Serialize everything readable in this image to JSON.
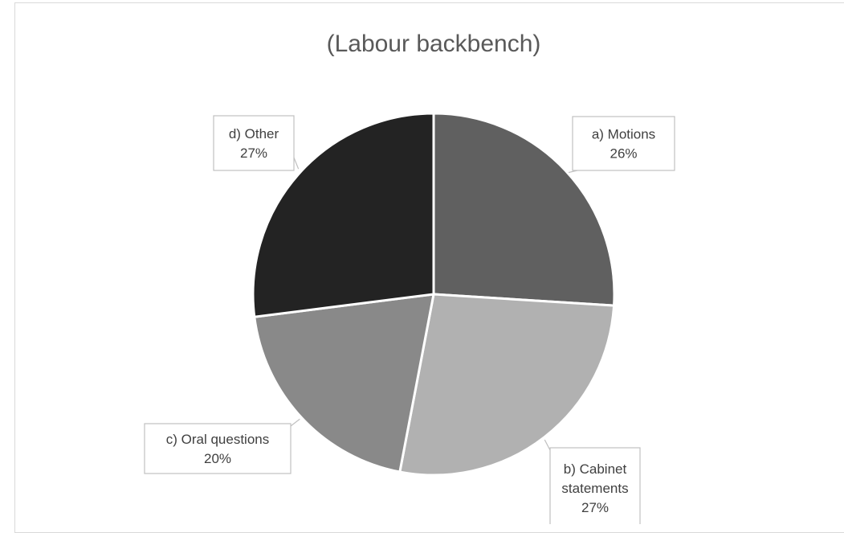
{
  "chart_data": {
    "type": "pie",
    "title": "(Labour backbench)",
    "slices": [
      {
        "label_lines": [
          "a) Motions"
        ],
        "percent_label": "26%",
        "value": 26,
        "color": "#606060"
      },
      {
        "label_lines": [
          "b) Cabinet",
          "statements"
        ],
        "percent_label": "27%",
        "value": 27,
        "color": "#b1b1b1"
      },
      {
        "label_lines": [
          "c) Oral questions"
        ],
        "percent_label": "20%",
        "value": 20,
        "color": "#898989"
      },
      {
        "label_lines": [
          "d) Other"
        ],
        "percent_label": "27%",
        "value": 27,
        "color": "#232323"
      }
    ],
    "start_angle": "12 o'clock",
    "direction": "clockwise",
    "legend": "none"
  }
}
